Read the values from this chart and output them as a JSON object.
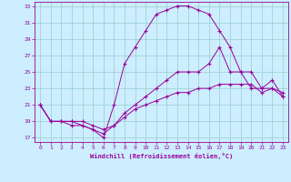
{
  "xlabel": "Windchill (Refroidissement éolien,°C)",
  "xlim": [
    -0.5,
    23.5
  ],
  "ylim": [
    16.5,
    33.5
  ],
  "yticks": [
    17,
    19,
    21,
    23,
    25,
    27,
    29,
    31,
    33
  ],
  "xticks": [
    0,
    1,
    2,
    3,
    4,
    5,
    6,
    7,
    8,
    9,
    10,
    11,
    12,
    13,
    14,
    15,
    16,
    17,
    18,
    19,
    20,
    21,
    22,
    23
  ],
  "bg_color": "#cceeff",
  "line_color": "#990099",
  "grid_color": "#99cccc",
  "line1_x": [
    0,
    1,
    2,
    3,
    4,
    5,
    6,
    7,
    8,
    9,
    10,
    11,
    12,
    13,
    14,
    15,
    16,
    17,
    18,
    19,
    20,
    21,
    22,
    23
  ],
  "line1_y": [
    21,
    19,
    19,
    19,
    18.5,
    18,
    17,
    21,
    26,
    28,
    30,
    32,
    32.5,
    33,
    33,
    32.5,
    32,
    30,
    28,
    25,
    23,
    23,
    23,
    22
  ],
  "line2_x": [
    0,
    1,
    2,
    3,
    4,
    5,
    6,
    7,
    8,
    9,
    10,
    11,
    12,
    13,
    14,
    15,
    16,
    17,
    18,
    19,
    20,
    21,
    22,
    23
  ],
  "line2_y": [
    21,
    19,
    19,
    18.5,
    18.5,
    18,
    17.5,
    18.5,
    20,
    21,
    22,
    23,
    24,
    25,
    25,
    25,
    26,
    28,
    25,
    25,
    25,
    23,
    24,
    22
  ],
  "line3_x": [
    0,
    1,
    2,
    3,
    4,
    5,
    6,
    7,
    8,
    9,
    10,
    11,
    12,
    13,
    14,
    15,
    16,
    17,
    18,
    19,
    20,
    21,
    22,
    23
  ],
  "line3_y": [
    21,
    19,
    19,
    19,
    19,
    18.5,
    18,
    18.5,
    19.5,
    20.5,
    21,
    21.5,
    22,
    22.5,
    22.5,
    23,
    23,
    23.5,
    23.5,
    23.5,
    23.5,
    22.5,
    23,
    22.5
  ]
}
